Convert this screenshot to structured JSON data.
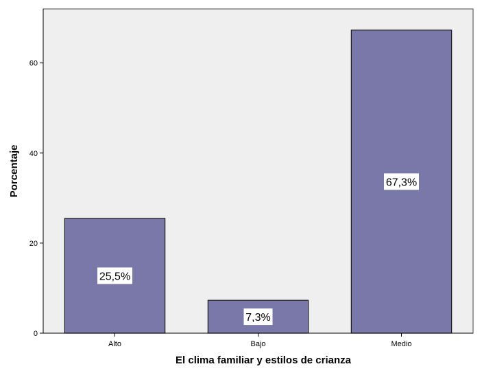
{
  "chart_data": {
    "type": "bar",
    "xlabel": "El clima familiar y estilos de crianza",
    "ylabel": "Porcentaje",
    "categories": [
      "Alto",
      "Bajo",
      "Medio"
    ],
    "values": [
      25.5,
      7.3,
      67.3
    ],
    "data_labels": [
      "25,5%",
      "7,3%",
      "67,3%"
    ],
    "ylim": [
      0,
      72
    ],
    "yticks": [
      0,
      20,
      40,
      60
    ],
    "ytick_labels": [
      "0",
      "20",
      "40",
      "60"
    ],
    "grid": false,
    "legend": "none",
    "colors": {
      "bar_fill": "#7a78a8",
      "bar_stroke": "#1a1a1a",
      "plot_background": "#efefef",
      "label_box": "#ffffff"
    }
  }
}
